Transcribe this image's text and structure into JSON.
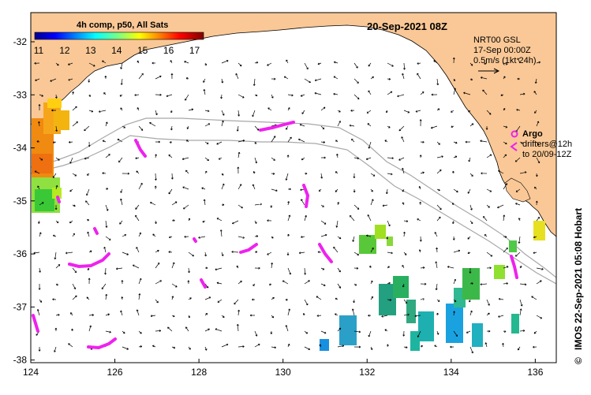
{
  "map": {
    "title_datetime": "20-Sep-2021 08Z",
    "colorbar": {
      "title": "4h comp, p50, All Sats",
      "tick_labels": [
        "11",
        "12",
        "13",
        "14",
        "15",
        "16",
        "17"
      ],
      "range": [
        11,
        17.5
      ],
      "colormap": "jet"
    },
    "current_info": {
      "line1": "NRT00 GSL",
      "line2": "17-Sep 00:00Z",
      "line3": "0.5m/s (1kt 24h)"
    },
    "argo": {
      "label": "Argo",
      "drifters_line1": "drifters@12h",
      "drifters_line2": "to 20/09-12Z"
    },
    "credit": "IMOS 22-Sep-2021 05:08 Hobart",
    "copyright_symbol": "©",
    "axes": {
      "lon_range": [
        124,
        136.5
      ],
      "lat_range": [
        -38.05,
        -31.45
      ],
      "lon_ticks": [
        "124",
        "126",
        "128",
        "130",
        "132",
        "134",
        "136"
      ],
      "lat_ticks": [
        "-32",
        "-33",
        "-34",
        "-35",
        "-36",
        "-37",
        "-38"
      ]
    },
    "colors": {
      "land": "#fac896",
      "sea": "#ffffff",
      "argo": "#ee22ee",
      "isobath": "#a8a8a8"
    }
  }
}
